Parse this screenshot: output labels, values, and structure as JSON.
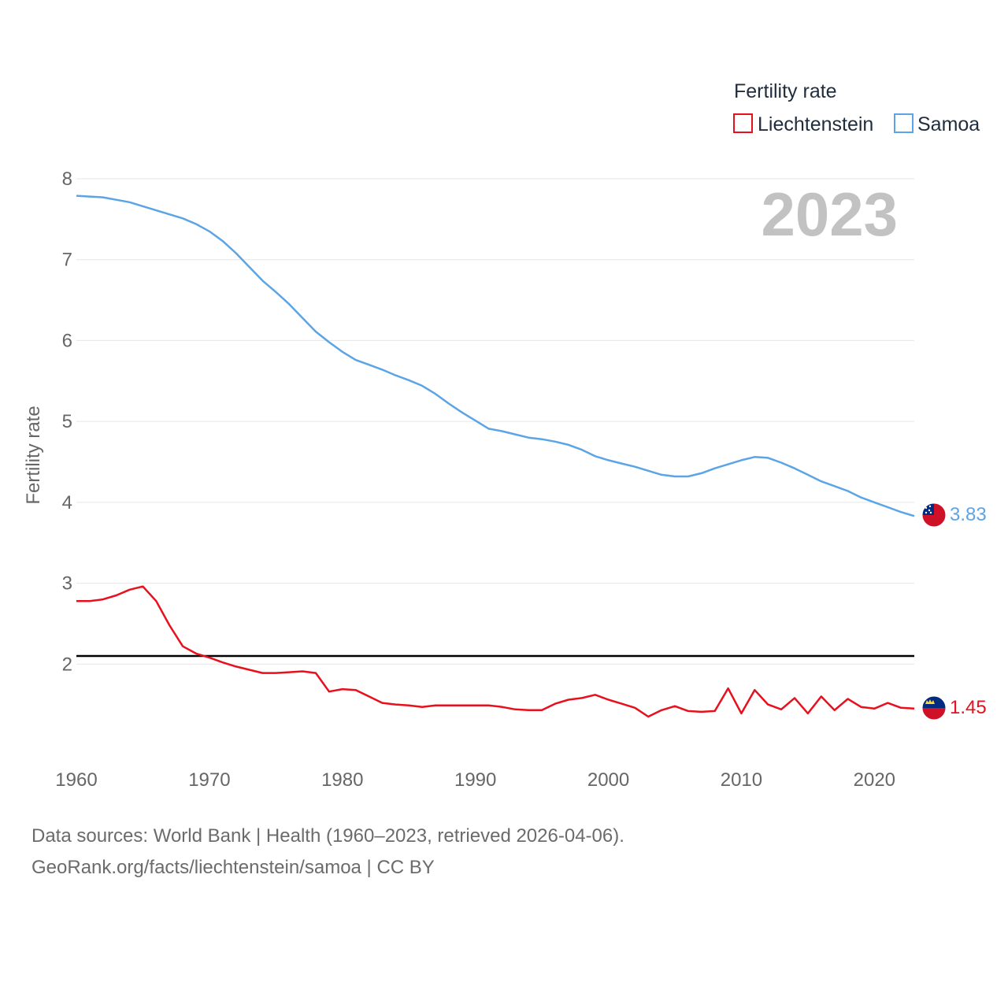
{
  "chart_data": {
    "type": "line",
    "year_label": "2023",
    "ylabel": "Fertility rate",
    "xlabel": "",
    "xlim": [
      1960,
      2023
    ],
    "ylim": [
      1,
      8
    ],
    "x_ticks": [
      1960,
      1970,
      1980,
      1990,
      2000,
      2010,
      2020
    ],
    "y_ticks": [
      2,
      3,
      4,
      5,
      6,
      7,
      8
    ],
    "reference_line": {
      "value": 2.1
    },
    "legend": {
      "title": "Fertility rate",
      "position": "top-right"
    },
    "x": [
      1960,
      1961,
      1962,
      1963,
      1964,
      1965,
      1966,
      1967,
      1968,
      1969,
      1970,
      1971,
      1972,
      1973,
      1974,
      1975,
      1976,
      1977,
      1978,
      1979,
      1980,
      1981,
      1982,
      1983,
      1984,
      1985,
      1986,
      1987,
      1988,
      1989,
      1990,
      1991,
      1992,
      1993,
      1994,
      1995,
      1996,
      1997,
      1998,
      1999,
      2000,
      2001,
      2002,
      2003,
      2004,
      2005,
      2006,
      2007,
      2008,
      2009,
      2010,
      2011,
      2012,
      2013,
      2014,
      2015,
      2016,
      2017,
      2018,
      2019,
      2020,
      2021,
      2022,
      2023
    ],
    "series": [
      {
        "name": "Liechtenstein",
        "color": "#e8101c",
        "flag": "liechtenstein-flag-icon",
        "end_label": "1.45",
        "values": [
          2.78,
          2.78,
          2.8,
          2.85,
          2.92,
          2.96,
          2.78,
          2.48,
          2.22,
          2.13,
          2.08,
          2.02,
          1.97,
          1.93,
          1.89,
          1.89,
          1.9,
          1.91,
          1.89,
          1.66,
          1.69,
          1.68,
          1.6,
          1.52,
          1.5,
          1.49,
          1.47,
          1.49,
          1.49,
          1.49,
          1.49,
          1.49,
          1.47,
          1.44,
          1.43,
          1.43,
          1.51,
          1.56,
          1.58,
          1.62,
          1.56,
          1.51,
          1.46,
          1.35,
          1.43,
          1.48,
          1.42,
          1.41,
          1.42,
          1.7,
          1.39,
          1.68,
          1.5,
          1.44,
          1.58,
          1.39,
          1.6,
          1.43,
          1.57,
          1.47,
          1.45,
          1.52,
          1.46,
          1.45
        ]
      },
      {
        "name": "Samoa",
        "color": "#5ba4e6",
        "flag": "samoa-flag-icon",
        "end_label": "3.83",
        "values": [
          7.79,
          7.78,
          7.77,
          7.74,
          7.71,
          7.66,
          7.61,
          7.56,
          7.51,
          7.44,
          7.35,
          7.23,
          7.08,
          6.91,
          6.74,
          6.6,
          6.45,
          6.28,
          6.11,
          5.98,
          5.86,
          5.76,
          5.7,
          5.64,
          5.57,
          5.51,
          5.44,
          5.34,
          5.22,
          5.11,
          5.01,
          4.91,
          4.88,
          4.84,
          4.8,
          4.78,
          4.75,
          4.71,
          4.65,
          4.57,
          4.52,
          4.48,
          4.44,
          4.39,
          4.34,
          4.32,
          4.32,
          4.36,
          4.42,
          4.47,
          4.52,
          4.56,
          4.55,
          4.49,
          4.42,
          4.34,
          4.26,
          4.2,
          4.14,
          4.06,
          4.0,
          3.94,
          3.88,
          3.83
        ]
      }
    ]
  },
  "footer": {
    "line1": "Data sources: World Bank | Health (1960–2023, retrieved 2026-04-06).",
    "line2": "GeoRank.org/facts/liechtenstein/samoa | CC BY"
  }
}
